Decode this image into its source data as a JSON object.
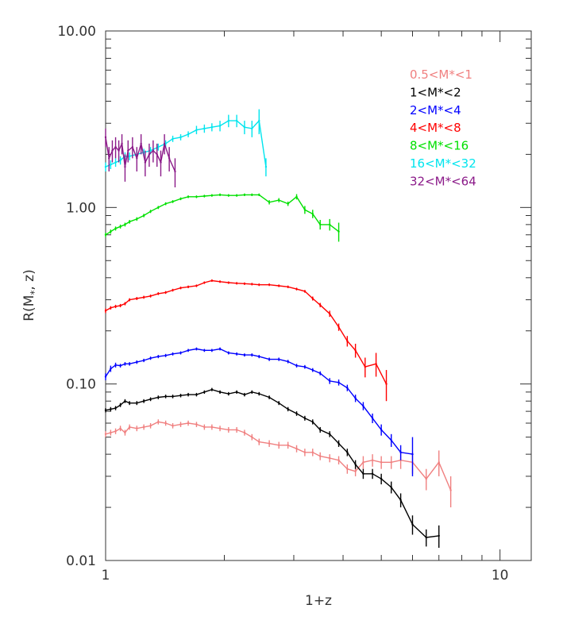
{
  "chart_data": {
    "type": "line",
    "title": "",
    "xlabel": "1+z",
    "ylabel": "R(M*, z)",
    "ylabel_main": "R(M",
    "ylabel_sub": "*",
    "ylabel_rest": ", z)",
    "xscale": "log",
    "yscale": "log",
    "xlim": [
      1,
      12
    ],
    "ylim": [
      0.01,
      10
    ],
    "grid": false,
    "legend_position": "top-right",
    "x_ticks": [
      {
        "value": 1,
        "label": "1"
      },
      {
        "value": 10,
        "label": "10"
      }
    ],
    "y_ticks": [
      {
        "value": 0.01,
        "label": "0.01"
      },
      {
        "value": 0.1,
        "label": "0.10"
      },
      {
        "value": 1,
        "label": "1.00"
      },
      {
        "value": 10,
        "label": "10.00"
      }
    ],
    "series": [
      {
        "name": "0.5<M*<1",
        "color": "#f08080",
        "x": [
          1.0,
          1.03,
          1.06,
          1.09,
          1.12,
          1.15,
          1.2,
          1.25,
          1.3,
          1.36,
          1.42,
          1.48,
          1.55,
          1.62,
          1.7,
          1.78,
          1.86,
          1.95,
          2.05,
          2.15,
          2.25,
          2.35,
          2.45,
          2.6,
          2.75,
          2.9,
          3.05,
          3.2,
          3.35,
          3.5,
          3.7,
          3.9,
          4.1,
          4.3,
          4.5,
          4.75,
          5.0,
          5.3,
          5.6,
          6.0,
          6.5,
          7.0,
          7.5
        ],
        "y": [
          0.052,
          0.053,
          0.054,
          0.056,
          0.053,
          0.057,
          0.056,
          0.057,
          0.058,
          0.061,
          0.06,
          0.058,
          0.059,
          0.06,
          0.059,
          0.057,
          0.057,
          0.056,
          0.055,
          0.055,
          0.053,
          0.05,
          0.047,
          0.046,
          0.045,
          0.045,
          0.043,
          0.041,
          0.041,
          0.039,
          0.038,
          0.037,
          0.033,
          0.032,
          0.036,
          0.037,
          0.036,
          0.036,
          0.037,
          0.036,
          0.029,
          0.036,
          0.025
        ],
        "err": [
          0.002,
          0.002,
          0.002,
          0.002,
          0.002,
          0.002,
          0.002,
          0.002,
          0.002,
          0.002,
          0.002,
          0.002,
          0.002,
          0.002,
          0.002,
          0.002,
          0.002,
          0.002,
          0.002,
          0.002,
          0.002,
          0.002,
          0.002,
          0.002,
          0.002,
          0.002,
          0.002,
          0.002,
          0.002,
          0.002,
          0.002,
          0.002,
          0.002,
          0.002,
          0.003,
          0.003,
          0.003,
          0.003,
          0.004,
          0.005,
          0.004,
          0.006,
          0.005
        ]
      },
      {
        "name": "1<M*<2",
        "color": "#000000",
        "x": [
          1.0,
          1.03,
          1.06,
          1.09,
          1.12,
          1.15,
          1.2,
          1.25,
          1.3,
          1.36,
          1.42,
          1.48,
          1.55,
          1.62,
          1.7,
          1.78,
          1.86,
          1.95,
          2.05,
          2.15,
          2.25,
          2.35,
          2.45,
          2.6,
          2.75,
          2.9,
          3.05,
          3.2,
          3.35,
          3.5,
          3.7,
          3.9,
          4.1,
          4.3,
          4.5,
          4.75,
          5.0,
          5.3,
          5.6,
          6.0,
          6.5,
          7.0
        ],
        "y": [
          0.071,
          0.072,
          0.073,
          0.076,
          0.08,
          0.078,
          0.078,
          0.08,
          0.082,
          0.084,
          0.085,
          0.085,
          0.086,
          0.087,
          0.087,
          0.09,
          0.093,
          0.09,
          0.088,
          0.09,
          0.087,
          0.09,
          0.088,
          0.084,
          0.078,
          0.072,
          0.068,
          0.064,
          0.061,
          0.055,
          0.052,
          0.046,
          0.041,
          0.035,
          0.031,
          0.031,
          0.029,
          0.026,
          0.022,
          0.016,
          0.0135,
          0.0138
        ],
        "err": [
          0.002,
          0.002,
          0.002,
          0.002,
          0.002,
          0.002,
          0.002,
          0.002,
          0.002,
          0.002,
          0.002,
          0.002,
          0.002,
          0.002,
          0.002,
          0.002,
          0.002,
          0.002,
          0.002,
          0.002,
          0.002,
          0.002,
          0.002,
          0.002,
          0.002,
          0.002,
          0.002,
          0.002,
          0.002,
          0.002,
          0.002,
          0.002,
          0.002,
          0.002,
          0.002,
          0.002,
          0.002,
          0.002,
          0.002,
          0.002,
          0.0015,
          0.002
        ]
      },
      {
        "name": "2<M*<4",
        "color": "#0000ff",
        "x": [
          1.0,
          1.03,
          1.06,
          1.09,
          1.12,
          1.15,
          1.2,
          1.25,
          1.3,
          1.36,
          1.42,
          1.48,
          1.55,
          1.62,
          1.7,
          1.78,
          1.86,
          1.95,
          2.05,
          2.15,
          2.25,
          2.35,
          2.45,
          2.6,
          2.75,
          2.9,
          3.05,
          3.2,
          3.35,
          3.5,
          3.7,
          3.9,
          4.1,
          4.3,
          4.5,
          4.75,
          5.0,
          5.3,
          5.6,
          6.0
        ],
        "y": [
          0.11,
          0.122,
          0.128,
          0.127,
          0.13,
          0.13,
          0.133,
          0.136,
          0.14,
          0.143,
          0.145,
          0.148,
          0.15,
          0.155,
          0.158,
          0.155,
          0.155,
          0.158,
          0.15,
          0.148,
          0.146,
          0.146,
          0.143,
          0.138,
          0.138,
          0.134,
          0.127,
          0.125,
          0.12,
          0.115,
          0.104,
          0.102,
          0.095,
          0.083,
          0.075,
          0.064,
          0.055,
          0.048,
          0.041,
          0.04
        ],
        "err": [
          0.005,
          0.005,
          0.004,
          0.003,
          0.003,
          0.003,
          0.003,
          0.003,
          0.003,
          0.003,
          0.003,
          0.003,
          0.003,
          0.003,
          0.003,
          0.003,
          0.003,
          0.003,
          0.003,
          0.003,
          0.003,
          0.003,
          0.003,
          0.003,
          0.003,
          0.003,
          0.003,
          0.003,
          0.003,
          0.003,
          0.004,
          0.004,
          0.004,
          0.004,
          0.004,
          0.004,
          0.004,
          0.004,
          0.004,
          0.01
        ]
      },
      {
        "name": "4<M*<8",
        "color": "#ff0000",
        "x": [
          1.0,
          1.03,
          1.06,
          1.09,
          1.12,
          1.15,
          1.2,
          1.25,
          1.3,
          1.36,
          1.42,
          1.48,
          1.55,
          1.62,
          1.7,
          1.78,
          1.86,
          1.95,
          2.05,
          2.15,
          2.25,
          2.35,
          2.45,
          2.6,
          2.75,
          2.9,
          3.05,
          3.2,
          3.35,
          3.5,
          3.7,
          3.9,
          4.1,
          4.3,
          4.55,
          4.85,
          5.15
        ],
        "y": [
          0.26,
          0.27,
          0.275,
          0.278,
          0.285,
          0.3,
          0.305,
          0.31,
          0.315,
          0.325,
          0.33,
          0.34,
          0.35,
          0.355,
          0.36,
          0.375,
          0.385,
          0.38,
          0.375,
          0.372,
          0.37,
          0.368,
          0.365,
          0.365,
          0.36,
          0.355,
          0.345,
          0.335,
          0.305,
          0.28,
          0.25,
          0.21,
          0.175,
          0.155,
          0.125,
          0.13,
          0.1
        ],
        "err": [
          0.008,
          0.006,
          0.006,
          0.006,
          0.006,
          0.006,
          0.006,
          0.006,
          0.006,
          0.006,
          0.006,
          0.006,
          0.006,
          0.006,
          0.006,
          0.006,
          0.006,
          0.006,
          0.006,
          0.006,
          0.006,
          0.006,
          0.006,
          0.006,
          0.006,
          0.006,
          0.006,
          0.006,
          0.008,
          0.008,
          0.01,
          0.01,
          0.012,
          0.014,
          0.016,
          0.02,
          0.02
        ]
      },
      {
        "name": "8<M*<16",
        "color": "#00e000",
        "x": [
          1.0,
          1.03,
          1.06,
          1.09,
          1.12,
          1.15,
          1.2,
          1.25,
          1.3,
          1.36,
          1.42,
          1.48,
          1.55,
          1.62,
          1.7,
          1.78,
          1.86,
          1.95,
          2.05,
          2.15,
          2.25,
          2.35,
          2.45,
          2.6,
          2.75,
          2.9,
          3.05,
          3.2,
          3.35,
          3.5,
          3.7,
          3.9
        ],
        "y": [
          0.7,
          0.73,
          0.76,
          0.78,
          0.8,
          0.83,
          0.86,
          0.9,
          0.95,
          1.0,
          1.05,
          1.08,
          1.12,
          1.15,
          1.15,
          1.16,
          1.17,
          1.18,
          1.17,
          1.17,
          1.18,
          1.18,
          1.18,
          1.07,
          1.1,
          1.05,
          1.15,
          0.97,
          0.92,
          0.8,
          0.8,
          0.73
        ],
        "err": [
          0.02,
          0.02,
          0.02,
          0.02,
          0.02,
          0.02,
          0.02,
          0.02,
          0.02,
          0.02,
          0.02,
          0.02,
          0.02,
          0.02,
          0.02,
          0.02,
          0.02,
          0.02,
          0.02,
          0.02,
          0.02,
          0.02,
          0.02,
          0.03,
          0.03,
          0.03,
          0.04,
          0.05,
          0.05,
          0.05,
          0.06,
          0.09
        ]
      },
      {
        "name": "16<M*<32",
        "color": "#00e5ee",
        "x": [
          1.0,
          1.03,
          1.06,
          1.09,
          1.12,
          1.15,
          1.2,
          1.25,
          1.3,
          1.36,
          1.42,
          1.48,
          1.55,
          1.62,
          1.7,
          1.78,
          1.86,
          1.95,
          2.05,
          2.15,
          2.25,
          2.35,
          2.45,
          2.55
        ],
        "y": [
          1.7,
          1.75,
          1.8,
          1.85,
          1.95,
          1.95,
          2.0,
          2.05,
          2.1,
          2.2,
          2.3,
          2.45,
          2.5,
          2.6,
          2.75,
          2.8,
          2.85,
          2.9,
          3.1,
          3.1,
          2.85,
          2.8,
          3.1,
          1.7
        ],
        "err": [
          0.1,
          0.1,
          0.1,
          0.1,
          0.1,
          0.1,
          0.1,
          0.1,
          0.1,
          0.1,
          0.1,
          0.1,
          0.1,
          0.1,
          0.15,
          0.15,
          0.15,
          0.2,
          0.25,
          0.25,
          0.25,
          0.3,
          0.5,
          0.2
        ]
      },
      {
        "name": "32<M*<64",
        "color": "#8b1a89",
        "x": [
          1.0,
          1.02,
          1.04,
          1.06,
          1.08,
          1.1,
          1.12,
          1.14,
          1.17,
          1.2,
          1.23,
          1.26,
          1.29,
          1.32,
          1.35,
          1.38,
          1.41,
          1.45,
          1.5
        ],
        "y": [
          2.5,
          1.9,
          2.1,
          2.2,
          2.1,
          2.3,
          1.7,
          2.1,
          2.2,
          1.9,
          2.3,
          1.8,
          2.0,
          2.1,
          2.0,
          1.8,
          2.3,
          1.9,
          1.6
        ],
        "err": [
          0.3,
          0.3,
          0.3,
          0.3,
          0.3,
          0.3,
          0.3,
          0.3,
          0.3,
          0.3,
          0.3,
          0.3,
          0.3,
          0.3,
          0.3,
          0.3,
          0.3,
          0.3,
          0.3
        ]
      }
    ]
  }
}
